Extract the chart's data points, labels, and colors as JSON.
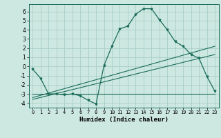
{
  "title": "",
  "xlabel": "Humidex (Indice chaleur)",
  "bg_color": "#cce8e0",
  "line_color": "#1a6b5a",
  "grid_color": "#aacec8",
  "xlim": [
    -0.5,
    23.5
  ],
  "ylim": [
    -4.5,
    6.8
  ],
  "yticks": [
    -4,
    -3,
    -2,
    -1,
    0,
    1,
    2,
    3,
    4,
    5,
    6
  ],
  "xticks": [
    0,
    1,
    2,
    3,
    4,
    5,
    6,
    7,
    8,
    9,
    10,
    11,
    12,
    13,
    14,
    15,
    16,
    17,
    18,
    19,
    20,
    21,
    22,
    23
  ],
  "main_x": [
    0,
    1,
    2,
    3,
    4,
    5,
    6,
    7,
    8,
    9,
    10,
    11,
    12,
    13,
    14,
    15,
    16,
    17,
    18,
    19,
    20,
    21,
    22,
    23
  ],
  "main_y": [
    -0.3,
    -1.3,
    -3.0,
    -3.0,
    -3.1,
    -3.0,
    -3.2,
    -3.7,
    -4.1,
    0.1,
    2.2,
    4.1,
    4.4,
    5.7,
    6.3,
    6.3,
    5.1,
    4.0,
    2.7,
    2.2,
    1.3,
    0.9,
    -1.1,
    -2.7
  ],
  "line1_x": [
    0,
    23
  ],
  "line1_y": [
    -3.0,
    -3.0
  ],
  "line2_x": [
    0,
    23
  ],
  "line2_y": [
    -3.4,
    2.2
  ],
  "line3_x": [
    0,
    23
  ],
  "line3_y": [
    -3.6,
    1.3
  ]
}
